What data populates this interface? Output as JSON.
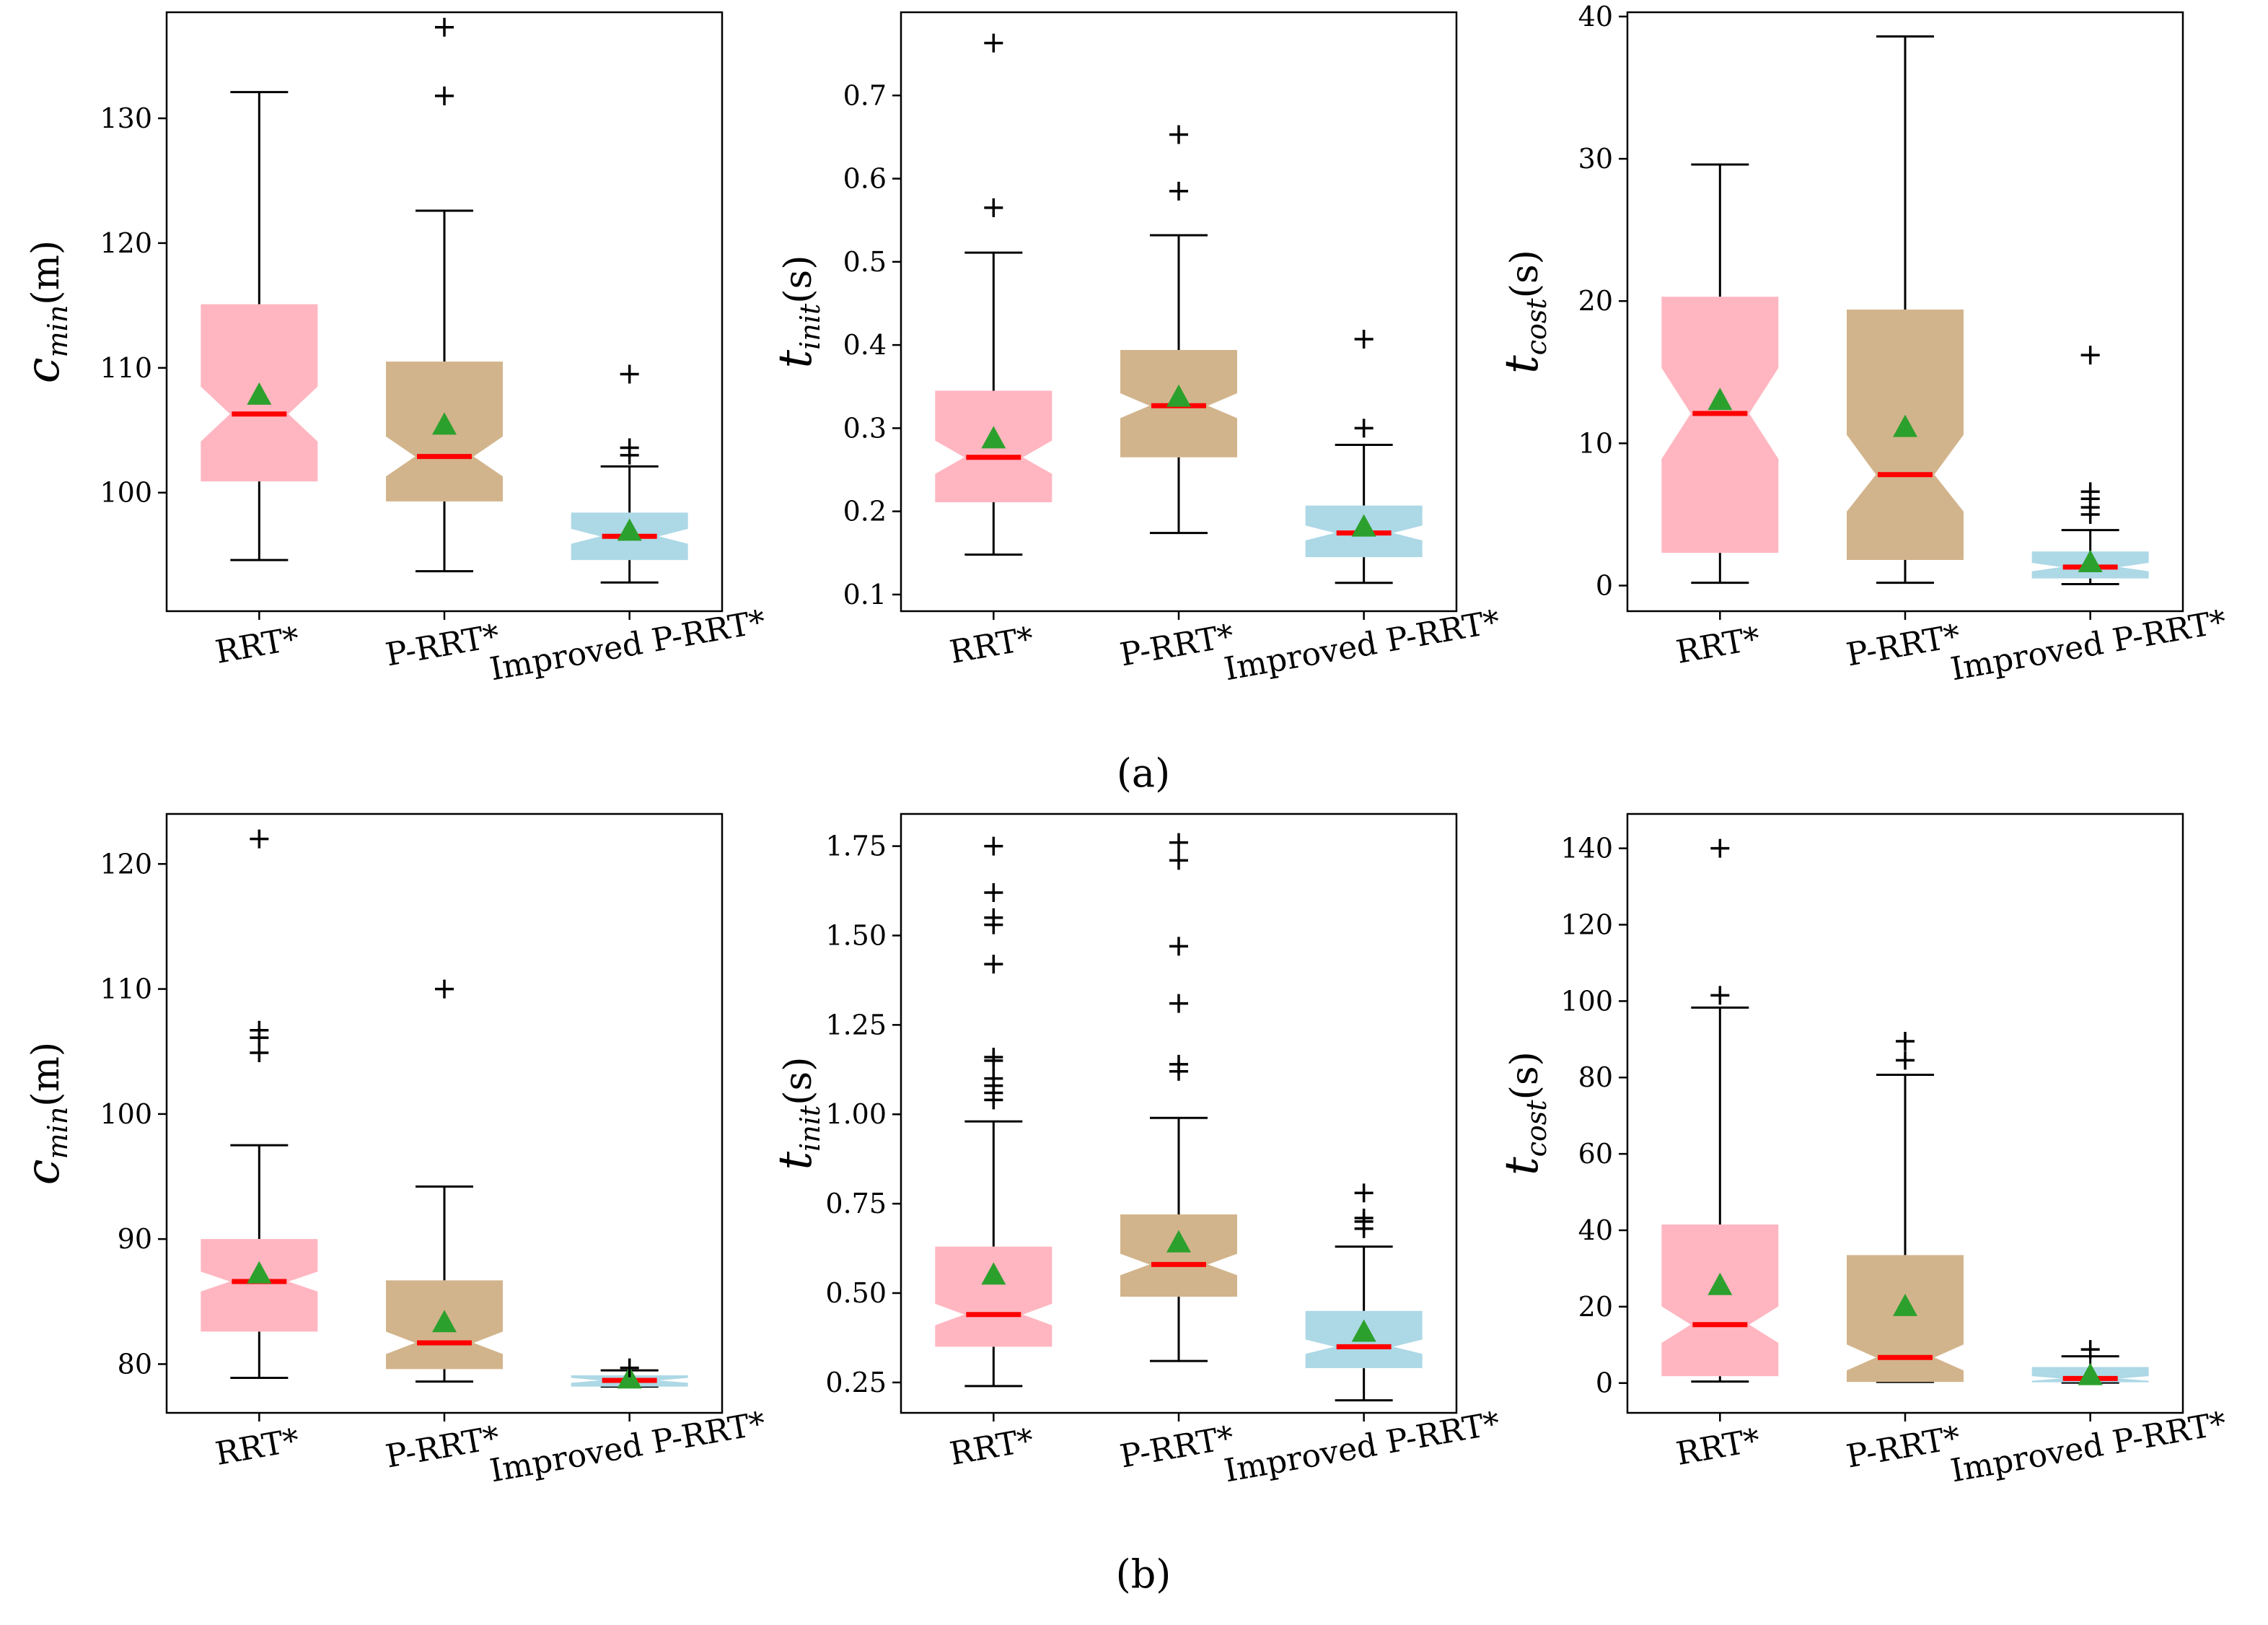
{
  "colors": {
    "rrt": "#ffb6c1",
    "prrt": "#d2b48c",
    "improved": "#add8e6",
    "median": "#ff0000",
    "mean": "#2ca02c",
    "whisker": "#000000"
  },
  "panel_labels": [
    "(a)",
    "(b)"
  ],
  "chart_data": [
    {
      "type": "boxplot",
      "notched": true,
      "group": "(a)",
      "ylabel": {
        "base": "c",
        "sub": "min",
        "unit": "(m)"
      },
      "ylim": [
        90.5,
        138.5
      ],
      "yticks": [
        100,
        110,
        120,
        130
      ],
      "ytick_labels": [
        "100",
        "110",
        "120",
        "130"
      ],
      "categories": [
        "RRT*",
        "P-RRT*",
        "Improved P-RRT*"
      ],
      "boxes": [
        {
          "whislo": 94.6,
          "q1": 100.9,
          "med": 106.3,
          "q3": 115.1,
          "whishi": 132.1,
          "notch_lo": 104.1,
          "notch_hi": 108.5,
          "mean": 107.8,
          "fliers": []
        },
        {
          "whislo": 93.7,
          "q1": 99.3,
          "med": 102.9,
          "q3": 110.5,
          "whishi": 122.6,
          "notch_lo": 101.3,
          "notch_hi": 104.5,
          "mean": 105.4,
          "fliers": [
            131.8,
            137.3
          ]
        },
        {
          "whislo": 92.8,
          "q1": 94.6,
          "med": 96.5,
          "q3": 98.4,
          "whishi": 102.1,
          "notch_lo": 95.9,
          "notch_hi": 97.1,
          "mean": 96.9,
          "fliers": [
            103.0,
            103.6,
            109.5
          ]
        }
      ]
    },
    {
      "type": "boxplot",
      "notched": true,
      "group": "(a)",
      "ylabel": {
        "base": "t",
        "sub": "init",
        "unit": "(s)"
      },
      "ylim": [
        0.08,
        0.8
      ],
      "yticks": [
        0.1,
        0.2,
        0.3,
        0.4,
        0.5,
        0.6,
        0.7
      ],
      "ytick_labels": [
        "0.1",
        "0.2",
        "0.3",
        "0.4",
        "0.5",
        "0.6",
        "0.7"
      ],
      "categories": [
        "RRT*",
        "P-RRT*",
        "Improved P-RRT*"
      ],
      "boxes": [
        {
          "whislo": 0.148,
          "q1": 0.211,
          "med": 0.265,
          "q3": 0.345,
          "whishi": 0.511,
          "notch_lo": 0.245,
          "notch_hi": 0.285,
          "mean": 0.287,
          "fliers": [
            0.565,
            0.763
          ]
        },
        {
          "whislo": 0.174,
          "q1": 0.265,
          "med": 0.327,
          "q3": 0.394,
          "whishi": 0.532,
          "notch_lo": 0.312,
          "notch_hi": 0.342,
          "mean": 0.337,
          "fliers": [
            0.585,
            0.653
          ]
        },
        {
          "whislo": 0.114,
          "q1": 0.145,
          "med": 0.174,
          "q3": 0.207,
          "whishi": 0.28,
          "notch_lo": 0.165,
          "notch_hi": 0.183,
          "mean": 0.181,
          "fliers": [
            0.3,
            0.407
          ]
        }
      ]
    },
    {
      "type": "boxplot",
      "notched": true,
      "group": "(a)",
      "ylabel": {
        "base": "t",
        "sub": "cost",
        "unit": "(s)"
      },
      "ylim": [
        -1.8,
        40.3
      ],
      "yticks": [
        0,
        10,
        20,
        30,
        40
      ],
      "ytick_labels": [
        "0",
        "10",
        "20",
        "30",
        "40"
      ],
      "categories": [
        "RRT*",
        "P-RRT*",
        "Improved P-RRT*"
      ],
      "boxes": [
        {
          "whislo": 0.2,
          "q1": 2.3,
          "med": 12.1,
          "q3": 20.3,
          "whishi": 29.6,
          "notch_lo": 8.9,
          "notch_hi": 15.3,
          "mean": 13.0,
          "fliers": []
        },
        {
          "whislo": 0.2,
          "q1": 1.8,
          "med": 7.8,
          "q3": 19.4,
          "whishi": 38.6,
          "notch_lo": 5.2,
          "notch_hi": 10.6,
          "mean": 11.1,
          "fliers": []
        },
        {
          "whislo": 0.1,
          "q1": 0.5,
          "med": 1.3,
          "q3": 2.4,
          "whishi": 3.9,
          "notch_lo": 1.0,
          "notch_hi": 1.6,
          "mean": 1.6,
          "fliers": [
            5.0,
            5.5,
            6.1,
            6.6,
            16.2
          ]
        }
      ]
    },
    {
      "type": "boxplot",
      "notched": true,
      "group": "(b)",
      "ylabel": {
        "base": "c",
        "sub": "min",
        "unit": "(m)"
      },
      "ylim": [
        76.1,
        124.0
      ],
      "yticks": [
        80,
        90,
        100,
        110,
        120
      ],
      "ytick_labels": [
        "80",
        "90",
        "100",
        "110",
        "120"
      ],
      "categories": [
        "RRT*",
        "P-RRT*",
        "Improved P-RRT*"
      ],
      "boxes": [
        {
          "whislo": 78.9,
          "q1": 82.6,
          "med": 86.6,
          "q3": 90.0,
          "whishi": 97.5,
          "notch_lo": 85.8,
          "notch_hi": 87.4,
          "mean": 87.2,
          "fliers": [
            104.9,
            106.1,
            106.7,
            122.0
          ]
        },
        {
          "whislo": 78.6,
          "q1": 79.6,
          "med": 81.7,
          "q3": 86.7,
          "whishi": 94.2,
          "notch_lo": 80.8,
          "notch_hi": 82.6,
          "mean": 83.3,
          "fliers": [
            110.0
          ]
        },
        {
          "whislo": 78.2,
          "q1": 78.2,
          "med": 78.7,
          "q3": 79.1,
          "whishi": 79.5,
          "notch_lo": 78.5,
          "notch_hi": 78.9,
          "mean": 78.8,
          "fliers": [
            79.7
          ]
        }
      ]
    },
    {
      "type": "boxplot",
      "notched": true,
      "group": "(b)",
      "ylabel": {
        "base": "t",
        "sub": "init",
        "unit": "(s)"
      },
      "ylim": [
        0.165,
        1.84
      ],
      "yticks": [
        0.25,
        0.5,
        0.75,
        1.0,
        1.25,
        1.5,
        1.75
      ],
      "ytick_labels": [
        "0.25",
        "0.50",
        "0.75",
        "1.00",
        "1.25",
        "1.50",
        "1.75"
      ],
      "categories": [
        "RRT*",
        "P-RRT*",
        "Improved P-RRT*"
      ],
      "boxes": [
        {
          "whislo": 0.24,
          "q1": 0.35,
          "med": 0.44,
          "q3": 0.63,
          "whishi": 0.98,
          "notch_lo": 0.41,
          "notch_hi": 0.47,
          "mean": 0.55,
          "fliers": [
            1.04,
            1.06,
            1.08,
            1.1,
            1.15,
            1.16,
            1.42,
            1.53,
            1.55,
            1.62,
            1.75
          ]
        },
        {
          "whislo": 0.31,
          "q1": 0.49,
          "med": 0.58,
          "q3": 0.72,
          "whishi": 0.99,
          "notch_lo": 0.55,
          "notch_hi": 0.61,
          "mean": 0.64,
          "fliers": [
            1.12,
            1.14,
            1.31,
            1.47,
            1.71,
            1.76
          ]
        },
        {
          "whislo": 0.2,
          "q1": 0.29,
          "med": 0.35,
          "q3": 0.45,
          "whishi": 0.63,
          "notch_lo": 0.33,
          "notch_hi": 0.37,
          "mean": 0.39,
          "fliers": [
            0.68,
            0.7,
            0.71,
            0.78
          ]
        }
      ]
    },
    {
      "type": "boxplot",
      "notched": true,
      "group": "(b)",
      "ylabel": {
        "base": "t",
        "sub": "cost",
        "unit": "(s)"
      },
      "ylim": [
        -7.8,
        149.0
      ],
      "yticks": [
        0,
        20,
        40,
        60,
        80,
        100,
        120,
        140
      ],
      "ytick_labels": [
        "0",
        "20",
        "40",
        "60",
        "80",
        "100",
        "120",
        "140"
      ],
      "categories": [
        "RRT*",
        "P-RRT*",
        "Improved P-RRT*"
      ],
      "boxes": [
        {
          "whislo": 0.4,
          "q1": 1.8,
          "med": 15.3,
          "q3": 41.5,
          "whishi": 98.3,
          "notch_lo": 10.5,
          "notch_hi": 20.1,
          "mean": 25.5,
          "fliers": [
            101.5,
            140.0
          ]
        },
        {
          "whislo": 0.3,
          "q1": 0.3,
          "med": 6.7,
          "q3": 33.5,
          "whishi": 80.7,
          "notch_lo": 3.3,
          "notch_hi": 10.1,
          "mean": 20.0,
          "fliers": [
            84.5,
            89.5
          ]
        },
        {
          "whislo": 0.1,
          "q1": 0.2,
          "med": 1.2,
          "q3": 4.2,
          "whishi": 7.0,
          "notch_lo": 0.6,
          "notch_hi": 1.8,
          "mean": 1.9,
          "fliers": [
            8.8
          ]
        }
      ]
    }
  ]
}
